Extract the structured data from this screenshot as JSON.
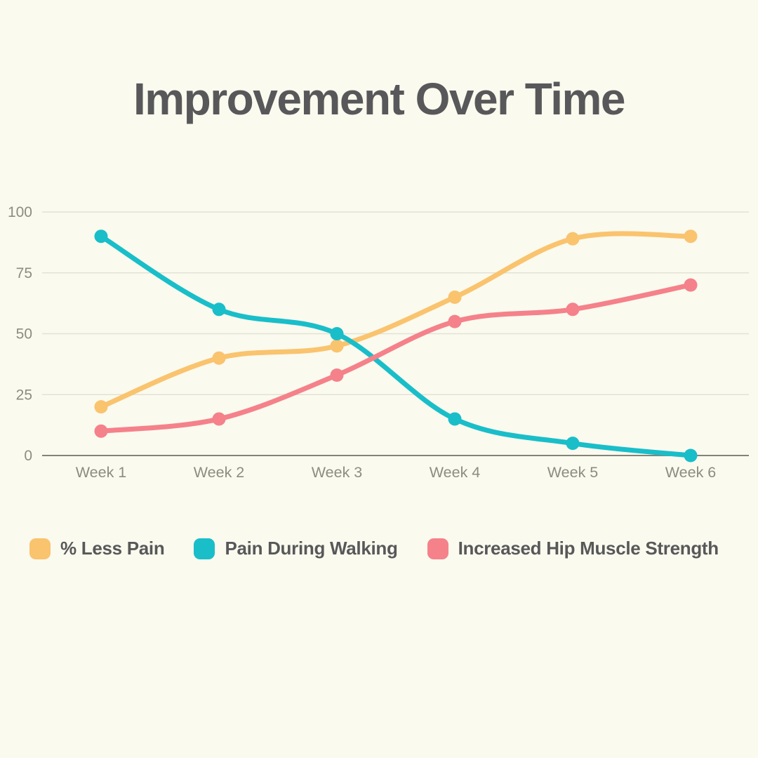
{
  "title": "Improvement Over Time",
  "chart_data": {
    "type": "line",
    "smooth": true,
    "grid": true,
    "legend_position": "bottom",
    "categories": [
      "Week 1",
      "Week 2",
      "Week 3",
      "Week 4",
      "Week 5",
      "Week 6"
    ],
    "series": [
      {
        "name": "% Less Pain",
        "color": "#FAC36E",
        "values": [
          20,
          40,
          45,
          65,
          89,
          90
        ]
      },
      {
        "name": "Pain During Walking",
        "color": "#19BEC9",
        "values": [
          90,
          60,
          50,
          15,
          5,
          0
        ]
      },
      {
        "name": "Increased Hip Muscle Strength",
        "color": "#F5818A",
        "values": [
          10,
          15,
          33,
          55,
          60,
          70
        ]
      }
    ],
    "yticks": [
      0,
      25,
      50,
      75,
      100
    ],
    "ylim": [
      0,
      100
    ],
    "xlabel": "",
    "ylabel": ""
  },
  "colors": {
    "background": "#FAFAEE",
    "title_text": "#58585A",
    "tick_text": "#8C8C82",
    "gridline": "#E1E1D5",
    "axis_line": "#83837A"
  }
}
